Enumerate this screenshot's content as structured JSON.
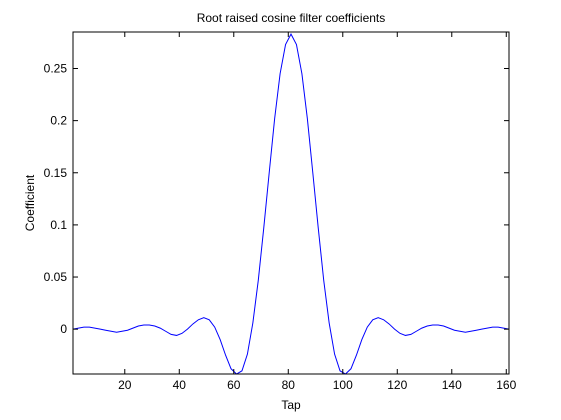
{
  "chart_data": {
    "type": "line",
    "title": "Root raised cosine filter coefficients",
    "xlabel": "Tap",
    "ylabel": "Coefficient",
    "xlim": [
      1,
      161
    ],
    "ylim": [
      -0.043,
      0.285
    ],
    "xticks": [
      20,
      40,
      60,
      80,
      100,
      120,
      140,
      160
    ],
    "yticks": [
      0,
      0.05,
      0.1,
      0.15,
      0.2,
      0.25
    ],
    "ytick_labels": [
      "0",
      "0.05",
      "0.1",
      "0.15",
      "0.2",
      "0.25"
    ],
    "grid": false,
    "legend": "none",
    "series": [
      {
        "color": "#0000ff",
        "x": [
          1,
          3,
          5,
          7,
          9,
          11,
          13,
          15,
          17,
          19,
          21,
          23,
          25,
          27,
          29,
          31,
          33,
          35,
          37,
          39,
          41,
          43,
          45,
          47,
          49,
          51,
          53,
          55,
          57,
          59,
          61,
          63,
          65,
          67,
          69,
          71,
          73,
          75,
          77,
          79,
          81,
          83,
          85,
          87,
          89,
          91,
          93,
          95,
          97,
          99,
          101,
          103,
          105,
          107,
          109,
          111,
          113,
          115,
          117,
          119,
          121,
          123,
          125,
          127,
          129,
          131,
          133,
          135,
          137,
          139,
          141,
          143,
          145,
          147,
          149,
          151,
          153,
          155,
          157,
          159,
          161
        ],
        "y": [
          0.0,
          0.001,
          0.002,
          0.002,
          0.001,
          0.0,
          -0.001,
          -0.002,
          -0.003,
          -0.002,
          -0.001,
          0.001,
          0.003,
          0.004,
          0.004,
          0.003,
          0.001,
          -0.002,
          -0.005,
          -0.006,
          -0.004,
          0.0,
          0.005,
          0.009,
          0.011,
          0.009,
          0.002,
          -0.01,
          -0.025,
          -0.038,
          -0.043,
          -0.04,
          -0.024,
          0.006,
          0.047,
          0.097,
          0.15,
          0.202,
          0.245,
          0.273,
          0.283,
          0.273,
          0.245,
          0.202,
          0.15,
          0.097,
          0.047,
          0.006,
          -0.024,
          -0.04,
          -0.043,
          -0.038,
          -0.025,
          -0.01,
          0.002,
          0.009,
          0.011,
          0.009,
          0.005,
          0.0,
          -0.004,
          -0.006,
          -0.005,
          -0.002,
          0.001,
          0.003,
          0.004,
          0.004,
          0.003,
          0.001,
          -0.001,
          -0.002,
          -0.003,
          -0.002,
          -0.001,
          0.0,
          0.001,
          0.002,
          0.002,
          0.001,
          0.0
        ]
      }
    ]
  }
}
